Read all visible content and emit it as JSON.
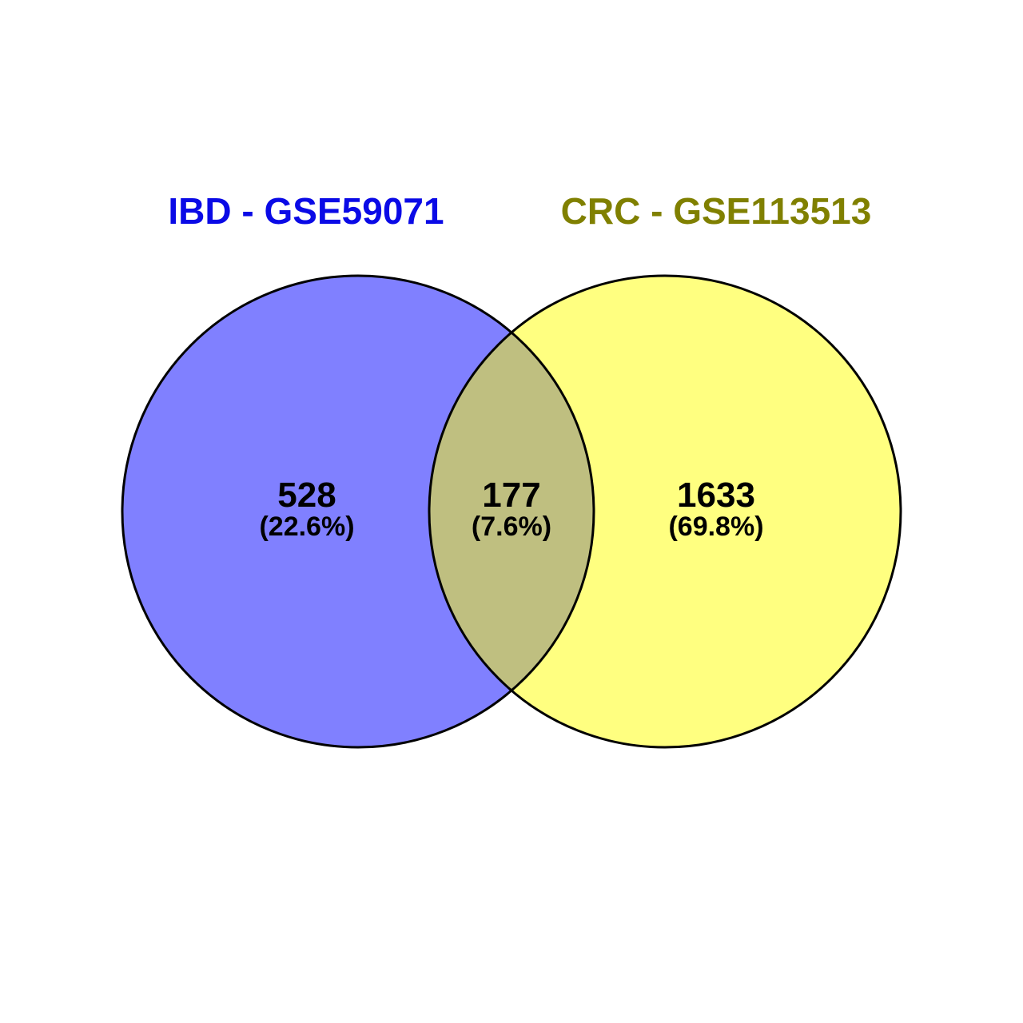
{
  "venn": {
    "sets": [
      {
        "label": "IBD - GSE59071",
        "label_color": "#0a0ae6",
        "fill_color": "#8080ff"
      },
      {
        "label": "CRC - GSE113513",
        "label_color": "#808000",
        "fill_color": "#ffff80"
      }
    ],
    "overlap_color": "#bfbf80",
    "regions": {
      "left_only": {
        "count": "528",
        "percent": "(22.6%)"
      },
      "intersection": {
        "count": "177",
        "percent": "(7.6%)"
      },
      "right_only": {
        "count": "1633",
        "percent": "(69.8%)"
      }
    }
  }
}
